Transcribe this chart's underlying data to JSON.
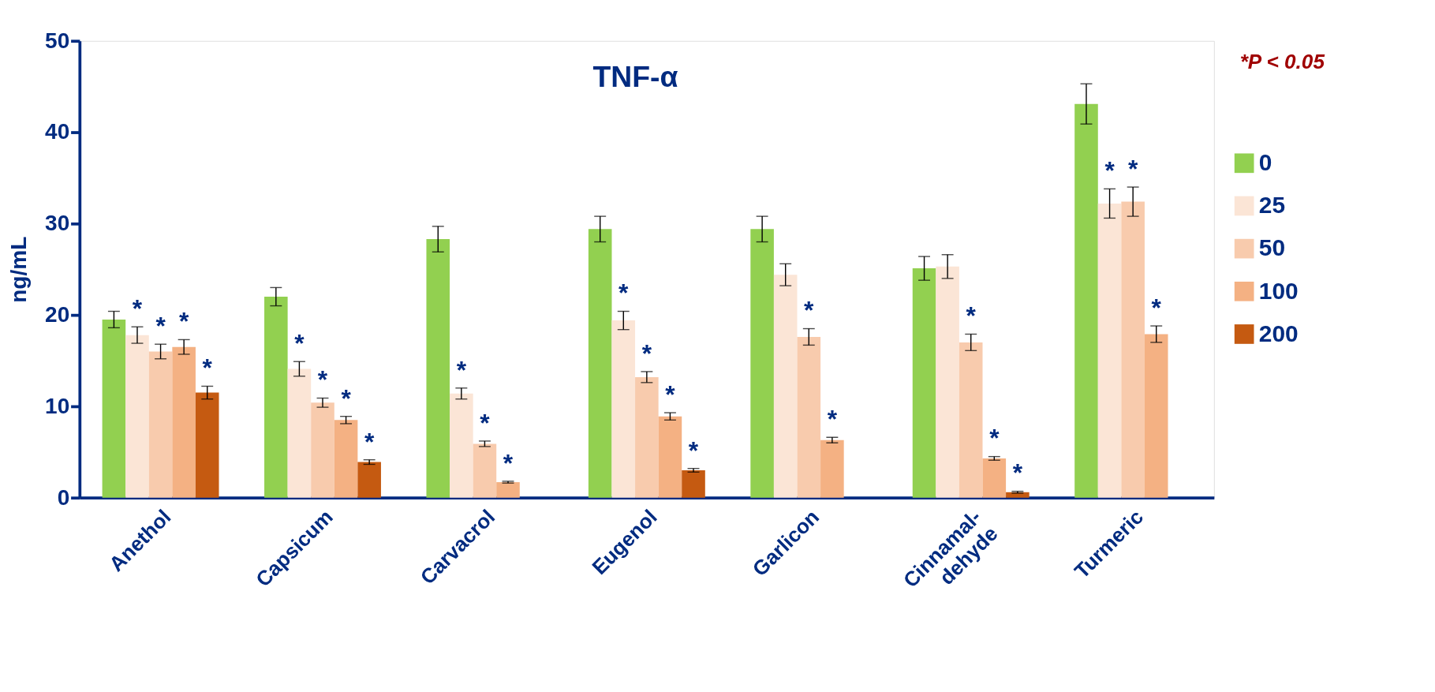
{
  "chart_data": {
    "type": "bar",
    "title": "TNF-α",
    "ylabel": "ng/mL",
    "categories": [
      "Anethol",
      "Capsicum",
      "Carvacrol",
      "Eugenol",
      "Garlicon",
      "Cinnamal-\ndehyde",
      "Turmeric"
    ],
    "series": [
      {
        "name": "0",
        "color": "#92d050",
        "values": [
          19.5,
          22.0,
          28.3,
          29.4,
          29.4,
          25.1,
          43.1
        ],
        "errors": [
          0.9,
          1.0,
          1.4,
          1.4,
          1.4,
          1.3,
          2.2
        ],
        "value_labels": [
          null,
          null,
          null,
          null,
          null,
          null,
          null
        ]
      },
      {
        "name": "25",
        "color": "#fbe5d6",
        "values": [
          17.8,
          14.1,
          11.4,
          19.4,
          24.4,
          25.3,
          32.2
        ],
        "errors": [
          0.9,
          0.8,
          0.6,
          1.0,
          1.2,
          1.3,
          1.6
        ],
        "value_labels": [
          "*",
          "*",
          "*",
          "*",
          null,
          null,
          "*"
        ]
      },
      {
        "name": "50",
        "color": "#f8cbad",
        "values": [
          16.0,
          10.4,
          5.9,
          13.2,
          17.6,
          17.0,
          32.4
        ],
        "errors": [
          0.8,
          0.5,
          0.3,
          0.6,
          0.9,
          0.9,
          1.6
        ],
        "value_labels": [
          "*",
          "*",
          "*",
          "*",
          "*",
          "*",
          "*"
        ]
      },
      {
        "name": "100",
        "color": "#f4b183",
        "values": [
          16.5,
          8.5,
          1.7,
          8.9,
          6.3,
          4.3,
          17.9
        ],
        "errors": [
          0.8,
          0.4,
          0.1,
          0.4,
          0.3,
          0.2,
          0.9
        ],
        "value_labels": [
          "*",
          "*",
          "*",
          "*",
          "*",
          "*",
          "*"
        ]
      },
      {
        "name": "200",
        "color": "#c55a11",
        "values": [
          11.5,
          3.9,
          null,
          3.0,
          null,
          0.6,
          null
        ],
        "errors": [
          0.7,
          0.25,
          null,
          0.2,
          null,
          0.1,
          null
        ],
        "value_labels": [
          "*",
          "*",
          null,
          "*",
          null,
          "*",
          null
        ]
      }
    ],
    "ylim": [
      0,
      50
    ],
    "yticks": [
      0,
      10,
      20,
      30,
      40,
      50
    ],
    "grid": false,
    "legend": "right",
    "annotations": [
      "*P < 0.05"
    ]
  }
}
